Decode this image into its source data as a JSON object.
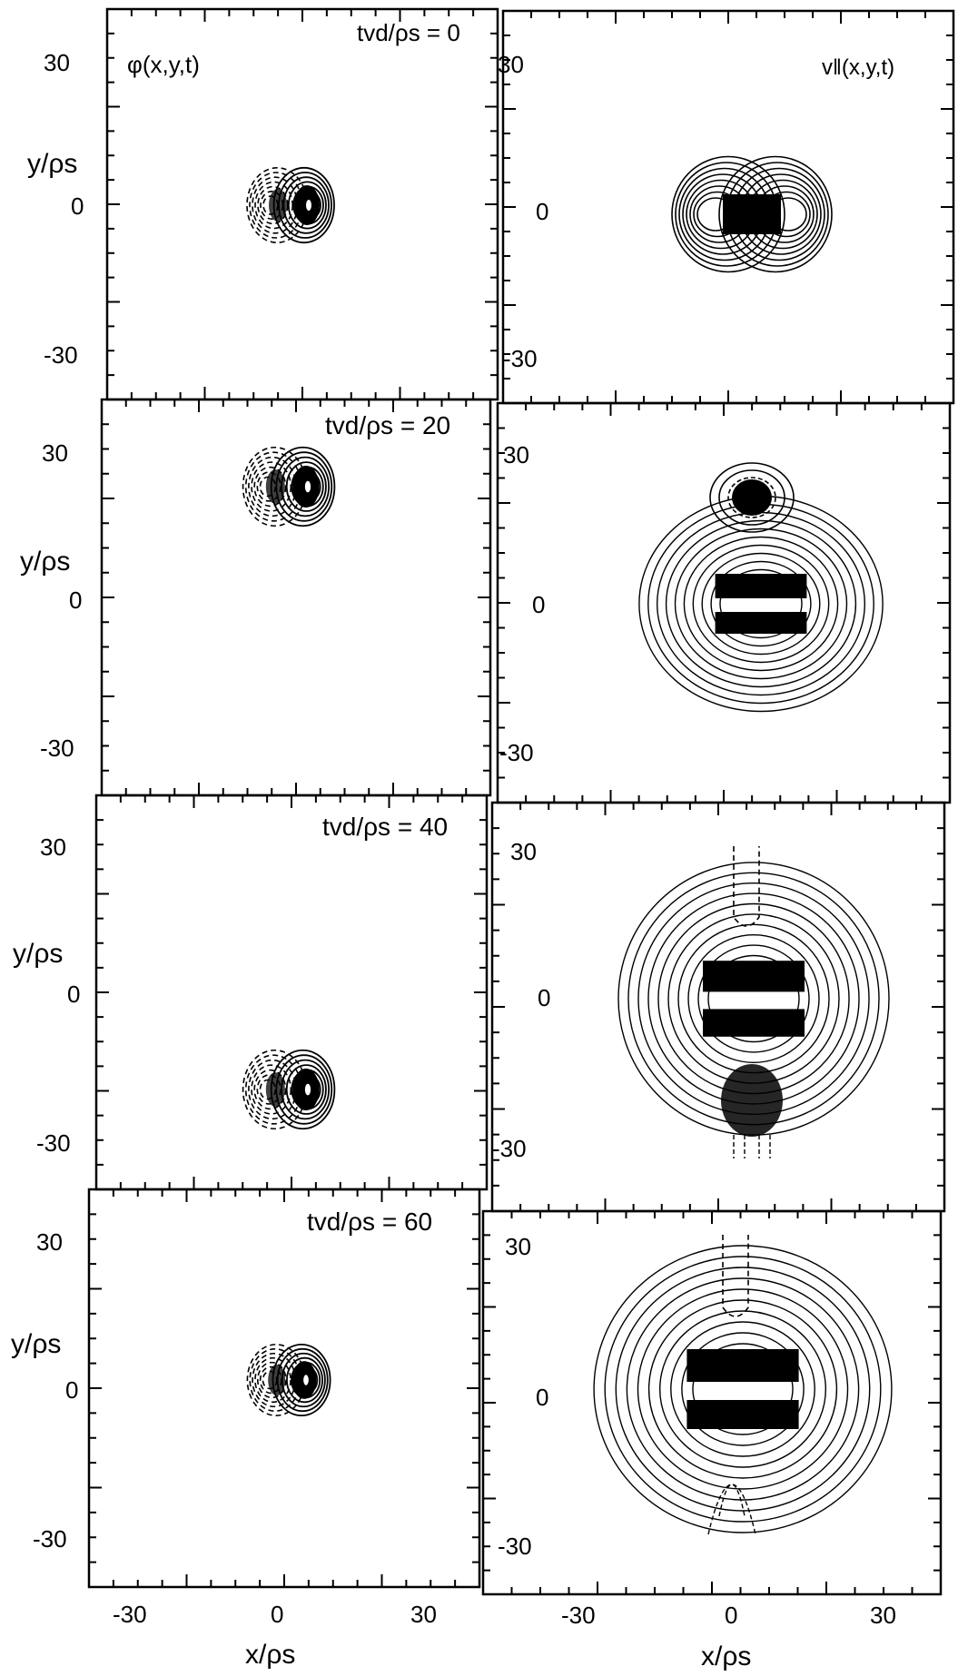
{
  "figure": {
    "left_column": {
      "quantity_label": "φ(x,y,t)",
      "y_axis_label": "y/ρs",
      "x_axis_label": "x/ρs",
      "y_ticks": [
        "30",
        "0",
        "-30"
      ],
      "x_ticks": [
        "-30",
        "0",
        "30"
      ],
      "panels": [
        {
          "time_label": "tvd/ρs = 0"
        },
        {
          "time_label": "tvd/ρs = 20"
        },
        {
          "time_label": "tvd/ρs = 40"
        },
        {
          "time_label": "tvd/ρs = 60"
        }
      ]
    },
    "right_column": {
      "quantity_label": "v‖(x,y,t)",
      "x_axis_label": "x/ρs",
      "y_ticks": [
        "30",
        "0",
        "-30"
      ],
      "x_ticks": [
        "-30",
        "0",
        "30"
      ]
    }
  }
}
